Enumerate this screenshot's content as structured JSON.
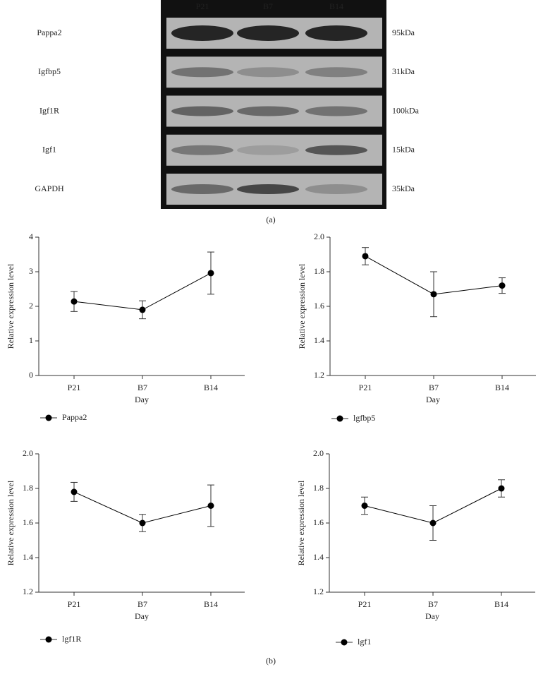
{
  "blot": {
    "lanes": [
      "P21",
      "B7",
      "B14"
    ],
    "rows": [
      {
        "label": "Pappa2",
        "size": "95kDa"
      },
      {
        "label": "Igfbp5",
        "size": "31kDa"
      },
      {
        "label": "Igf1R",
        "size": "100kDa"
      },
      {
        "label": "Igf1",
        "size": "15kDa"
      },
      {
        "label": "GAPDH",
        "size": "35kDa"
      }
    ],
    "caption": "(a)"
  },
  "caption": "(b)",
  "chart_data": [
    {
      "type": "line",
      "ylabel": "Relative expression level",
      "xlabel": "Day",
      "categories": [
        "P21",
        "B7",
        "B14"
      ],
      "series": [
        {
          "name": "Pappa2",
          "color": "#000000",
          "values": [
            2.14,
            1.9,
            2.96
          ],
          "errors": [
            0.29,
            0.26,
            0.61
          ]
        }
      ],
      "ylim": [
        0,
        4
      ],
      "yticks": [
        0,
        1,
        2,
        3,
        4
      ]
    },
    {
      "type": "line",
      "ylabel": "Relative expression level",
      "xlabel": "Day",
      "categories": [
        "P21",
        "B7",
        "B14"
      ],
      "series": [
        {
          "name": "lgfbp5",
          "color": "#000000",
          "values": [
            1.89,
            1.67,
            1.72
          ],
          "errors": [
            0.05,
            0.13,
            0.045
          ]
        }
      ],
      "ylim": [
        1.2,
        2
      ],
      "yticks": [
        1.2,
        1.4,
        1.6,
        1.8,
        {
          "value": 2,
          "label": "2.0"
        }
      ]
    },
    {
      "type": "line",
      "ylabel": "Relative expression level",
      "xlabel": "Day",
      "categories": [
        "P21",
        "B7",
        "B14"
      ],
      "series": [
        {
          "name": "lgf1R",
          "color": "#000000",
          "values": [
            1.78,
            1.6,
            1.7
          ],
          "errors": [
            0.055,
            0.05,
            0.12
          ]
        }
      ],
      "ylim": [
        1.2,
        2
      ],
      "yticks": [
        1.2,
        1.4,
        1.6,
        1.8,
        {
          "value": 2,
          "label": "2.0"
        }
      ]
    },
    {
      "type": "line",
      "ylabel": "Relative expression level",
      "xlabel": "Day",
      "categories": [
        "P21",
        "B7",
        "B14"
      ],
      "series": [
        {
          "name": "lgf1",
          "color": "#000000",
          "values": [
            1.7,
            1.6,
            1.8
          ],
          "errors": [
            0.05,
            0.1,
            0.05
          ]
        }
      ],
      "ylim": [
        1.2,
        2
      ],
      "yticks": [
        1.2,
        1.4,
        1.6,
        1.8,
        {
          "value": 2,
          "label": "2.0"
        }
      ]
    }
  ]
}
